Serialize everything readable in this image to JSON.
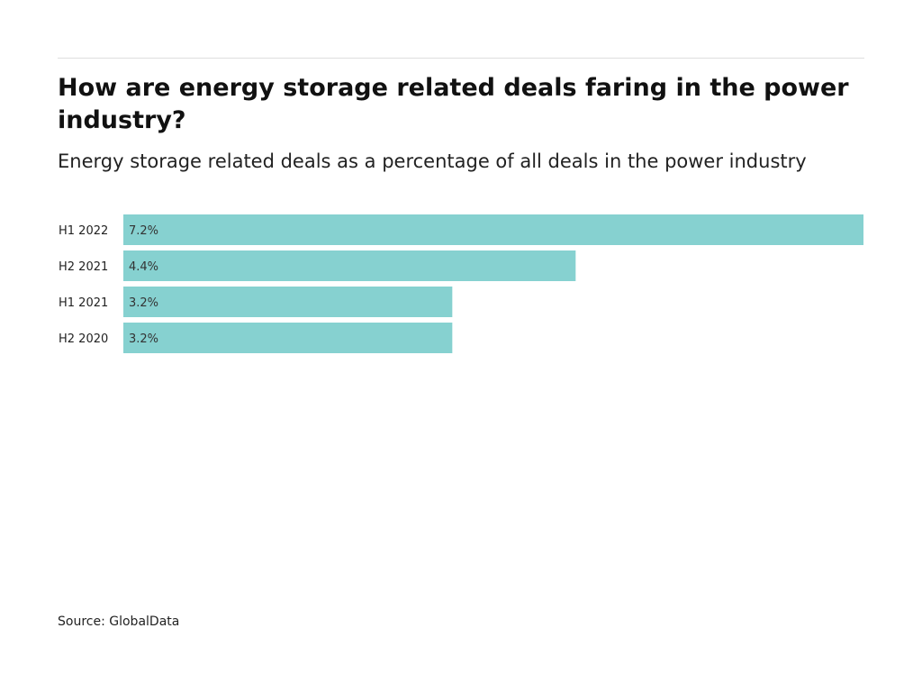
{
  "chart_data": {
    "type": "bar",
    "orientation": "horizontal",
    "title": "How are energy storage related deals faring in the power industry?",
    "subtitle": "Energy storage related deals as a percentage of all deals in the power industry",
    "categories": [
      "H1 2022",
      "H2 2021",
      "H1 2021",
      "H2 2020"
    ],
    "values": [
      7.2,
      4.4,
      3.2,
      3.2
    ],
    "value_labels": [
      "7.2%",
      "4.4%",
      "3.2%",
      "3.2%"
    ],
    "unit": "%",
    "xlim": [
      0,
      7.2
    ],
    "grid": false,
    "bar_color": "#86d1d0"
  },
  "source": "Source: GlobalData"
}
